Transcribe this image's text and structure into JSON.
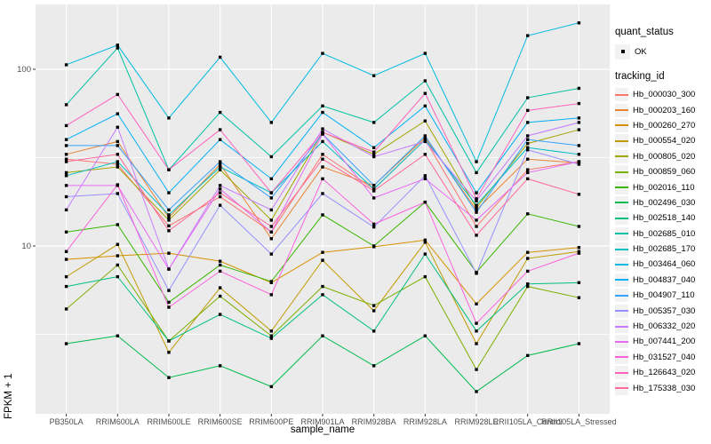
{
  "chart_data": {
    "type": "line",
    "title": "",
    "xlabel": "sample_name",
    "ylabel": "FPKM + 1",
    "y_scale": "log10",
    "y_ticks": [
      100,
      10
    ],
    "y_tick_labels": [
      "100",
      "10"
    ],
    "ylim": [
      1.12,
      233
    ],
    "grid": "on",
    "point_marker": "square",
    "point_color": "#000000",
    "legend": {
      "position": "right",
      "quant_status_title": "quant_status",
      "quant_status_items": [
        "OK"
      ],
      "tracking_id_title": "tracking_id"
    },
    "categories": [
      "PB350LA",
      "RRIM600LA",
      "RRIM600LE",
      "RRIM600SE",
      "RRIM600PE",
      "RRIM901LA",
      "RRIM928BA",
      "RRIM928LA",
      "RRIM928LE",
      "RRII105LA_Control",
      "RRII105LA_Stressed"
    ],
    "series": [
      {
        "name": "Hb_000030_300",
        "color": "#F8766D",
        "values": [
          31,
          29,
          13,
          19,
          12,
          33,
          21,
          40,
          12.9,
          27,
          30
        ]
      },
      {
        "name": "Hb_000203_160",
        "color": "#EA8331",
        "values": [
          33,
          39,
          14.5,
          29,
          11,
          28,
          22,
          41,
          16,
          31,
          29.5
        ]
      },
      {
        "name": "Hb_000260_270",
        "color": "#D89000",
        "values": [
          8.4,
          8.8,
          9.1,
          8.2,
          6.2,
          9.2,
          9.9,
          10.8,
          4.7,
          9.2,
          9.8
        ]
      },
      {
        "name": "Hb_000554_020",
        "color": "#C09B00",
        "values": [
          6.7,
          10.2,
          2.5,
          5.8,
          3.3,
          8.3,
          4.3,
          10.5,
          2.8,
          8.5,
          9.3
        ]
      },
      {
        "name": "Hb_000805_020",
        "color": "#A3A500",
        "values": [
          26,
          28,
          14,
          27,
          14,
          44,
          33,
          51,
          16.5,
          38,
          45.5
        ]
      },
      {
        "name": "Hb_000859_060",
        "color": "#7CAE00",
        "values": [
          4.4,
          7.8,
          2.9,
          5.2,
          3.1,
          5.9,
          4.6,
          6.7,
          2.0,
          5.9,
          5.1
        ]
      },
      {
        "name": "Hb_002016_110",
        "color": "#39B600",
        "values": [
          12,
          13.2,
          4.8,
          7.8,
          6.3,
          15,
          10,
          17.7,
          7.1,
          15.2,
          12.9
        ]
      },
      {
        "name": "Hb_002496_030",
        "color": "#00BB4E",
        "values": [
          2.8,
          3.1,
          1.8,
          2.1,
          1.6,
          3.1,
          2.1,
          3.1,
          1.5,
          2.4,
          2.8
        ]
      },
      {
        "name": "Hb_002518_140",
        "color": "#00BF7D",
        "values": [
          5.9,
          6.7,
          2.9,
          4.1,
          3.0,
          5.3,
          3.3,
          9.0,
          3.3,
          6.1,
          6.2
        ]
      },
      {
        "name": "Hb_002685_010",
        "color": "#00C1A3",
        "values": [
          63,
          132,
          27,
          57,
          32,
          62,
          50,
          86,
          26,
          69,
          78
        ]
      },
      {
        "name": "Hb_002685_170",
        "color": "#00BFC4",
        "values": [
          25,
          30,
          15,
          28,
          20,
          39,
          21,
          40,
          17,
          36,
          33
        ]
      },
      {
        "name": "Hb_003464_060",
        "color": "#00BAE0",
        "values": [
          106,
          137,
          53,
          117,
          50,
          123,
          92,
          123,
          30,
          155,
          183
        ]
      },
      {
        "name": "Hb_004837_040",
        "color": "#00B0F6",
        "values": [
          40,
          56,
          20,
          40,
          24,
          57,
          36,
          62,
          20,
          50,
          53
        ]
      },
      {
        "name": "Hb_004907_110",
        "color": "#35A2FF",
        "values": [
          37,
          37,
          16,
          30,
          18.7,
          43,
          22,
          42,
          15.5,
          40,
          37
        ]
      },
      {
        "name": "Hb_005357_030",
        "color": "#9590FF",
        "values": [
          19,
          19.8,
          5.6,
          17,
          9.0,
          19.8,
          12.8,
          25,
          7.0,
          35,
          29
        ]
      },
      {
        "name": "Hb_006332_020",
        "color": "#C77CFF",
        "values": [
          16,
          47,
          7.4,
          22,
          16,
          46,
          32,
          39,
          18,
          42,
          50
        ]
      },
      {
        "name": "Hb_007441_200",
        "color": "#E76BF3",
        "values": [
          22,
          22,
          7.4,
          21,
          12,
          43,
          18.7,
          24,
          14,
          26,
          30
        ]
      },
      {
        "name": "Hb_031527_040",
        "color": "#FA62DB",
        "values": [
          9.3,
          22.2,
          4.5,
          7.2,
          5.3,
          24,
          13.3,
          17.7,
          3.65,
          7.2,
          9.1
        ]
      },
      {
        "name": "Hb_126643_020",
        "color": "#FF62BC",
        "values": [
          48,
          72,
          27,
          45.5,
          20,
          44,
          34,
          73,
          18.5,
          58.5,
          64
        ]
      },
      {
        "name": "Hb_175338_030",
        "color": "#FF6A98",
        "values": [
          30,
          33,
          12.2,
          20,
          12.9,
          31,
          20.5,
          33,
          11.5,
          24,
          19.6
        ]
      }
    ]
  },
  "colors": {
    "panel_bg": "#EBEBEB",
    "grid": "#FFFFFF",
    "tick_label": "#4D4D4D",
    "tick_mark": "#333333",
    "legend_key_bg": "#F2F2F2",
    "background": "#FFFFFF"
  }
}
